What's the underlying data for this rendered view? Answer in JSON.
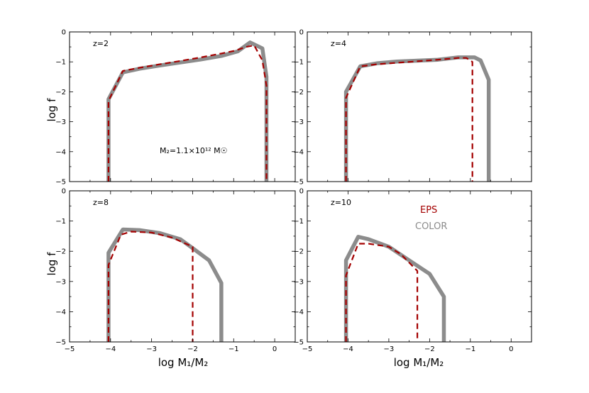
{
  "figure": {
    "xlabel": "log  M₁/M₂",
    "ylabel": "log  f",
    "annotation": "M₂=1.1×10¹² M☉",
    "legend": [
      {
        "name": "EPS",
        "color": "#a40000"
      },
      {
        "name": "COLOR",
        "color": "#8c8c8c"
      }
    ]
  },
  "chart_data": [
    {
      "type": "line",
      "title": "z=2",
      "xlim": [
        -5,
        0.5
      ],
      "ylim": [
        -5,
        0
      ],
      "xticks": [
        -5,
        -4,
        -3,
        -2,
        -1,
        0
      ],
      "yticks": [
        -5,
        -4,
        -3,
        -2,
        -1,
        0
      ],
      "series": [
        {
          "name": "COLOR",
          "x": [
            -4.05,
            -4.05,
            -3.7,
            -3.3,
            -2.8,
            -2.3,
            -1.8,
            -1.3,
            -0.9,
            -0.6,
            -0.3,
            -0.2,
            -0.2
          ],
          "y": [
            -5,
            -2.25,
            -1.35,
            -1.23,
            -1.12,
            -1.02,
            -0.92,
            -0.8,
            -0.65,
            -0.35,
            -0.55,
            -1.5,
            -5
          ]
        },
        {
          "name": "EPS",
          "x": [
            -4.05,
            -4.05,
            -3.7,
            -3.3,
            -2.8,
            -2.3,
            -1.8,
            -1.3,
            -0.95,
            -0.7,
            -0.5,
            -0.3,
            -0.2,
            -0.2
          ],
          "y": [
            -5,
            -2.3,
            -1.3,
            -1.2,
            -1.08,
            -0.97,
            -0.85,
            -0.72,
            -0.62,
            -0.5,
            -0.45,
            -0.95,
            -1.8,
            -5
          ]
        }
      ]
    },
    {
      "type": "line",
      "title": "z=4",
      "xlim": [
        -5,
        0.5
      ],
      "ylim": [
        -5,
        0
      ],
      "xticks": [
        -5,
        -4,
        -3,
        -2,
        -1,
        0
      ],
      "yticks": [
        -5,
        -4,
        -3,
        -2,
        -1,
        0
      ],
      "series": [
        {
          "name": "COLOR",
          "x": [
            -4.05,
            -4.05,
            -3.7,
            -3.3,
            -2.8,
            -2.3,
            -1.8,
            -1.3,
            -0.9,
            -0.75,
            -0.55,
            -0.55
          ],
          "y": [
            -5,
            -2.0,
            -1.15,
            -1.05,
            -0.99,
            -0.96,
            -0.93,
            -0.85,
            -0.85,
            -0.95,
            -1.6,
            -5
          ]
        },
        {
          "name": "EPS",
          "x": [
            -4.05,
            -4.05,
            -3.7,
            -3.3,
            -2.8,
            -2.3,
            -1.8,
            -1.3,
            -1.1,
            -0.95,
            -0.95
          ],
          "y": [
            -5,
            -2.2,
            -1.15,
            -1.08,
            -1.03,
            -0.98,
            -0.93,
            -0.87,
            -0.87,
            -1.0,
            -5
          ]
        }
      ]
    },
    {
      "type": "line",
      "title": "z=8",
      "xlim": [
        -5,
        0.5
      ],
      "ylim": [
        -5,
        0
      ],
      "xticks": [
        -5,
        -4,
        -3,
        -2,
        -1,
        0
      ],
      "yticks": [
        -5,
        -4,
        -3,
        -2,
        -1,
        0
      ],
      "series": [
        {
          "name": "COLOR",
          "x": [
            -4.05,
            -4.05,
            -3.7,
            -3.3,
            -2.8,
            -2.3,
            -2.0,
            -1.6,
            -1.3,
            -1.3
          ],
          "y": [
            -5,
            -2.05,
            -1.28,
            -1.3,
            -1.4,
            -1.6,
            -1.9,
            -2.3,
            -3.05,
            -5
          ]
        },
        {
          "name": "EPS",
          "x": [
            -4.05,
            -4.05,
            -3.75,
            -3.5,
            -3.0,
            -2.5,
            -2.0,
            -2.0
          ],
          "y": [
            -5,
            -2.45,
            -1.45,
            -1.35,
            -1.38,
            -1.55,
            -1.85,
            -5
          ]
        }
      ]
    },
    {
      "type": "line",
      "title": "z=10",
      "xlim": [
        -5,
        0.5
      ],
      "ylim": [
        -5,
        0
      ],
      "xticks": [
        -5,
        -4,
        -3,
        -2,
        -1,
        0
      ],
      "yticks": [
        -5,
        -4,
        -3,
        -2,
        -1,
        0
      ],
      "series": [
        {
          "name": "COLOR",
          "x": [
            -4.05,
            -4.05,
            -3.75,
            -3.5,
            -3.0,
            -2.5,
            -2.0,
            -1.65,
            -1.65
          ],
          "y": [
            -5,
            -2.3,
            -1.52,
            -1.6,
            -1.85,
            -2.3,
            -2.75,
            -3.5,
            -5
          ]
        },
        {
          "name": "EPS",
          "x": [
            -4.05,
            -4.05,
            -3.75,
            -3.5,
            -3.0,
            -2.7,
            -2.3,
            -2.3
          ],
          "y": [
            -5,
            -2.8,
            -1.75,
            -1.75,
            -1.85,
            -2.1,
            -2.65,
            -5
          ]
        }
      ]
    }
  ]
}
